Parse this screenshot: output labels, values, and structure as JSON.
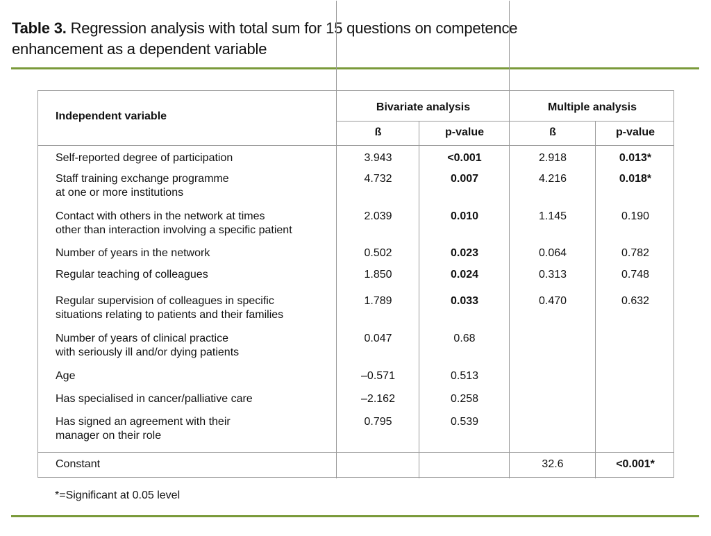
{
  "title": {
    "label": "Table 3.",
    "text": " Regression analysis with total sum for 15 questions on competence",
    "text2": "enhancement as a dependent variable"
  },
  "header": {
    "independent": "Independent variable",
    "bivariate": "Bivariate analysis",
    "multiple": "Multiple analysis",
    "beta": "ß",
    "pvalue": "p-value"
  },
  "rows": [
    {
      "label": [
        "Self-reported degree of participation"
      ],
      "b_beta": "3.943",
      "b_p": "<0.001",
      "b_p_bold": true,
      "m_beta": "2.918",
      "m_p": "0.013*",
      "m_p_bold": true
    },
    {
      "label": [
        "Staff training exchange programme",
        "at one or more institutions"
      ],
      "b_beta": "4.732",
      "b_p": "0.007",
      "b_p_bold": true,
      "m_beta": "4.216",
      "m_p": "0.018*",
      "m_p_bold": true
    },
    {
      "label": [
        "Contact with others in the network at times",
        "other than interaction involving a specific patient"
      ],
      "b_beta": "2.039",
      "b_p": "0.010",
      "b_p_bold": true,
      "m_beta": "1.145",
      "m_p": "0.190",
      "m_p_bold": false
    },
    {
      "label": [
        "Number of years in the network"
      ],
      "b_beta": "0.502",
      "b_p": "0.023",
      "b_p_bold": true,
      "m_beta": "0.064",
      "m_p": "0.782",
      "m_p_bold": false
    },
    {
      "label": [
        "Regular teaching of colleagues"
      ],
      "b_beta": "1.850",
      "b_p": "0.024",
      "b_p_bold": true,
      "m_beta": "0.313",
      "m_p": "0.748",
      "m_p_bold": false
    },
    {
      "label": [
        "Regular supervision of colleagues in specific",
        "situations relating to patients and their families"
      ],
      "b_beta": "1.789",
      "b_p": "0.033",
      "b_p_bold": true,
      "m_beta": "0.470",
      "m_p": "0.632",
      "m_p_bold": false
    },
    {
      "label": [
        "Number of years of clinical practice",
        "with seriously ill and/or dying patients"
      ],
      "b_beta": "0.047",
      "b_p": "0.68",
      "b_p_bold": false,
      "m_beta": "",
      "m_p": "",
      "m_p_bold": false
    },
    {
      "label": [
        "Age"
      ],
      "b_beta": "–0.571",
      "b_p": "0.513",
      "b_p_bold": false,
      "m_beta": "",
      "m_p": "",
      "m_p_bold": false
    },
    {
      "label": [
        "Has specialised in cancer/palliative care"
      ],
      "b_beta": "–2.162",
      "b_p": "0.258",
      "b_p_bold": false,
      "m_beta": "",
      "m_p": "",
      "m_p_bold": false
    },
    {
      "label": [
        "Has signed an agreement with their",
        "manager on their role"
      ],
      "b_beta": "0.795",
      "b_p": "0.539",
      "b_p_bold": false,
      "m_beta": "",
      "m_p": "",
      "m_p_bold": false
    }
  ],
  "constant": {
    "label": "Constant",
    "m_beta": "32.6",
    "m_p": "<0.001*"
  },
  "footnote": "*=Significant at 0.05 level",
  "colors": {
    "rule": "#7a9a3a",
    "border": "#9a9a9a"
  }
}
